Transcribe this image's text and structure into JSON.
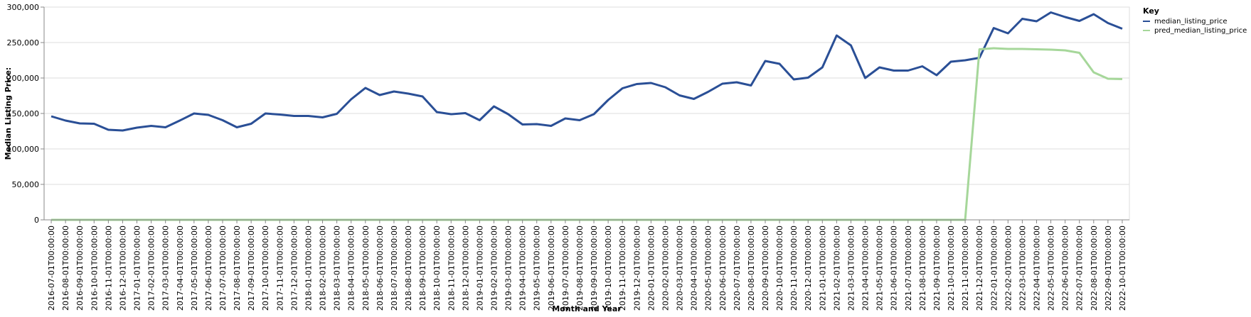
{
  "chart_data": {
    "type": "line",
    "xlabel": "Month and Year",
    "ylabel": "Median Listing Price:",
    "ylim": [
      0,
      300000
    ],
    "yticks": [
      0,
      50000,
      100000,
      150000,
      200000,
      250000,
      300000
    ],
    "ytick_labels": [
      "0",
      "50,000",
      "100,000",
      "150,000",
      "200,000",
      "250,000",
      "300,000"
    ],
    "grid": true,
    "legend": {
      "title": "Key",
      "position": "right"
    },
    "x": [
      "2016-07-01T00:00:00",
      "2016-08-01T00:00:00",
      "2016-09-01T00:00:00",
      "2016-10-01T00:00:00",
      "2016-11-01T00:00:00",
      "2016-12-01T00:00:00",
      "2017-01-01T00:00:00",
      "2017-02-01T00:00:00",
      "2017-03-01T00:00:00",
      "2017-04-01T00:00:00",
      "2017-05-01T00:00:00",
      "2017-06-01T00:00:00",
      "2017-07-01T00:00:00",
      "2017-08-01T00:00:00",
      "2017-09-01T00:00:00",
      "2017-10-01T00:00:00",
      "2017-11-01T00:00:00",
      "2017-12-01T00:00:00",
      "2018-01-01T00:00:00",
      "2018-02-01T00:00:00",
      "2018-03-01T00:00:00",
      "2018-04-01T00:00:00",
      "2018-05-01T00:00:00",
      "2018-06-01T00:00:00",
      "2018-07-01T00:00:00",
      "2018-08-01T00:00:00",
      "2018-09-01T00:00:00",
      "2018-10-01T00:00:00",
      "2018-11-01T00:00:00",
      "2018-12-01T00:00:00",
      "2019-01-01T00:00:00",
      "2019-02-01T00:00:00",
      "2019-03-01T00:00:00",
      "2019-04-01T00:00:00",
      "2019-05-01T00:00:00",
      "2019-06-01T00:00:00",
      "2019-07-01T00:00:00",
      "2019-08-01T00:00:00",
      "2019-09-01T00:00:00",
      "2019-10-01T00:00:00",
      "2019-11-01T00:00:00",
      "2019-12-01T00:00:00",
      "2020-01-01T00:00:00",
      "2020-02-01T00:00:00",
      "2020-03-01T00:00:00",
      "2020-04-01T00:00:00",
      "2020-05-01T00:00:00",
      "2020-06-01T00:00:00",
      "2020-07-01T00:00:00",
      "2020-08-01T00:00:00",
      "2020-09-01T00:00:00",
      "2020-10-01T00:00:00",
      "2020-11-01T00:00:00",
      "2020-12-01T00:00:00",
      "2021-01-01T00:00:00",
      "2021-02-01T00:00:00",
      "2021-03-01T00:00:00",
      "2021-04-01T00:00:00",
      "2021-05-01T00:00:00",
      "2021-06-01T00:00:00",
      "2021-07-01T00:00:00",
      "2021-08-01T00:00:00",
      "2021-09-01T00:00:00",
      "2021-10-01T00:00:00",
      "2021-11-01T00:00:00",
      "2021-12-01T00:00:00",
      "2022-01-01T00:00:00",
      "2022-02-01T00:00:00",
      "2022-03-01T00:00:00",
      "2022-04-01T00:00:00",
      "2022-05-01T00:00:00",
      "2022-06-01T00:00:00",
      "2022-07-01T00:00:00",
      "2022-08-01T00:00:00",
      "2022-09-01T00:00:00",
      "2022-10-01T00:00:00"
    ],
    "series": [
      {
        "name": "median_listing_price",
        "color": "#2a4f96",
        "values": [
          146000,
          140000,
          136000,
          135500,
          127000,
          126000,
          130000,
          132500,
          130500,
          140000,
          150000,
          148000,
          140500,
          130500,
          135500,
          150000,
          148500,
          146500,
          146500,
          144500,
          149500,
          170000,
          186000,
          176000,
          181000,
          178000,
          174000,
          152000,
          149000,
          150500,
          140500,
          160000,
          149000,
          134500,
          135000,
          132500,
          143000,
          140500,
          149000,
          169000,
          185500,
          191500,
          193000,
          187000,
          175500,
          170500,
          180500,
          192000,
          194000,
          189500,
          224000,
          220000,
          198000,
          200500,
          215000,
          260000,
          246000,
          200000,
          215000,
          210500,
          210500,
          216500,
          204000,
          223000,
          225000,
          228500,
          270500,
          263000,
          283500,
          280000,
          292500,
          286000,
          280500,
          290000,
          277500,
          269500
        ]
      },
      {
        "name": "pred_median_listing_price",
        "color": "#a6d79a",
        "values": [
          0,
          0,
          0,
          0,
          0,
          0,
          0,
          0,
          0,
          0,
          0,
          0,
          0,
          0,
          0,
          0,
          0,
          0,
          0,
          0,
          0,
          0,
          0,
          0,
          0,
          0,
          0,
          0,
          0,
          0,
          0,
          0,
          0,
          0,
          0,
          0,
          0,
          0,
          0,
          0,
          0,
          0,
          0,
          0,
          0,
          0,
          0,
          0,
          0,
          0,
          0,
          0,
          0,
          0,
          0,
          0,
          0,
          0,
          0,
          0,
          0,
          0,
          0,
          0,
          0,
          240500,
          242000,
          241000,
          241000,
          240500,
          240000,
          239000,
          235500,
          208000,
          199000,
          198500
        ]
      }
    ]
  }
}
